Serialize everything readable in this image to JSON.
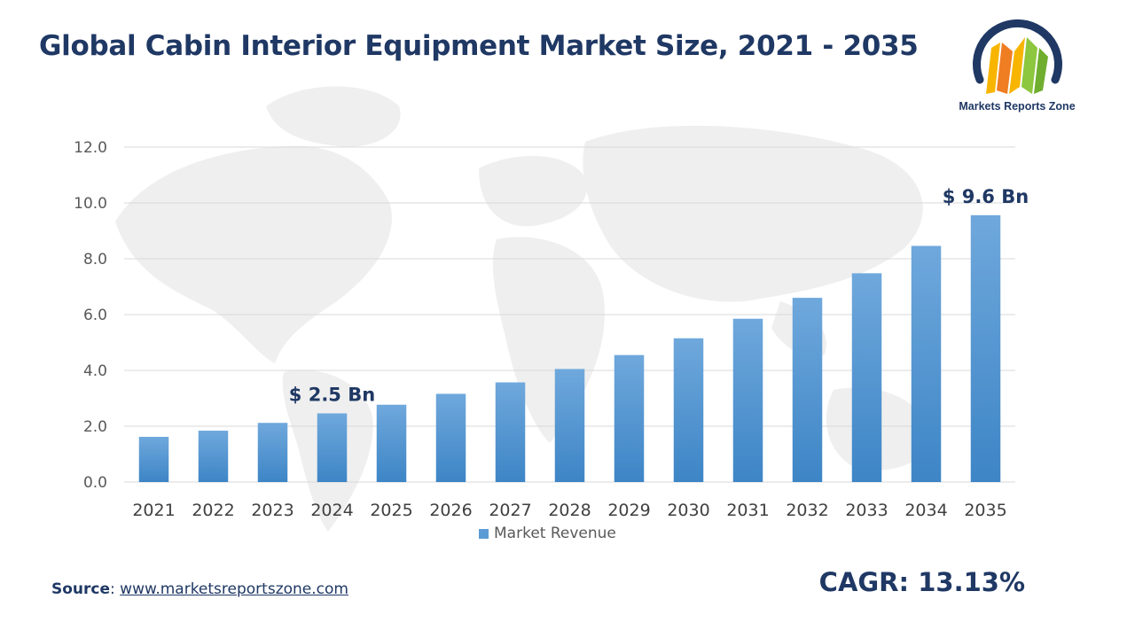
{
  "header": {
    "title": "Global Cabin Interior Equipment Market Size, 2021 - 2035"
  },
  "logo": {
    "text": "Markets Reports Zone",
    "colors": [
      "#f7b500",
      "#ef7d22",
      "#8dc63f",
      "#1f3864"
    ]
  },
  "footer": {
    "source_label": "Source",
    "source_sep": ": ",
    "source_url": "www.marketsreportszone.com",
    "cagr": "CAGR: 13.13%"
  },
  "chart_data": {
    "type": "bar",
    "categories": [
      "2021",
      "2022",
      "2023",
      "2024",
      "2025",
      "2026",
      "2027",
      "2028",
      "2029",
      "2030",
      "2031",
      "2032",
      "2033",
      "2034",
      "2035"
    ],
    "series": [
      {
        "name": "Market Revenue",
        "values": [
          1.62,
          1.84,
          2.12,
          2.46,
          2.77,
          3.16,
          3.57,
          4.05,
          4.55,
          5.15,
          5.85,
          6.6,
          7.48,
          8.46,
          9.56
        ],
        "color": "#5b9bd5"
      }
    ],
    "ylim": [
      0,
      12
    ],
    "yticks": [
      "0.0",
      "2.0",
      "4.0",
      "6.0",
      "8.0",
      "10.0",
      "12.0"
    ],
    "grid": true,
    "legend": "bottom",
    "annotations": [
      {
        "category": "2024",
        "text": "$ 2.5 Bn"
      },
      {
        "category": "2035",
        "text": "$ 9.6 Bn"
      }
    ]
  }
}
